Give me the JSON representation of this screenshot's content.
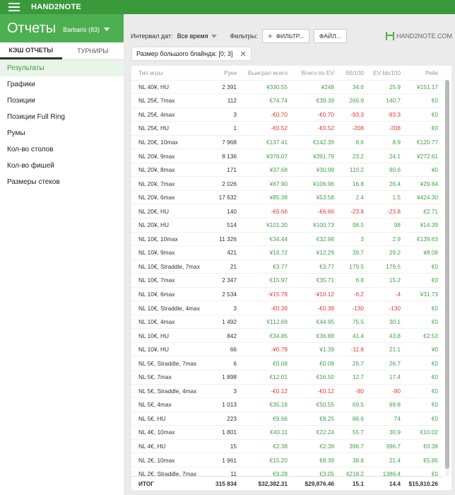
{
  "topbar": {
    "app_name": "HAND2NOTE"
  },
  "header": {
    "title": "Отчеты",
    "account": "Barbaris (83)"
  },
  "sidebar": {
    "tabs": [
      {
        "label": "КЭШ ОТЧЕТЫ"
      },
      {
        "label": "ТУРНИРЫ"
      }
    ],
    "items": [
      {
        "label": "Результаты"
      },
      {
        "label": "Графики"
      },
      {
        "label": "Позиции"
      },
      {
        "label": "Позиции Full Ring"
      },
      {
        "label": "Румы"
      },
      {
        "label": "Кол-во столов"
      },
      {
        "label": "Кол-во фишей"
      },
      {
        "label": "Размеры стеков"
      }
    ]
  },
  "filterbar": {
    "date_label": "Интервал дат:",
    "date_value": "Все время",
    "filters_label": "Фильтры:",
    "filter_button": "ФИЛЬТР...",
    "file_button": "ФАЙЛ...",
    "logo_text": "HAND2NOTE.COM"
  },
  "chip": {
    "label": "Размер большого блайнда: [0; 3]"
  },
  "table": {
    "columns": [
      "Тип игры",
      "Руки",
      "Выиграл всего",
      "Всего по EV",
      "бб/100",
      "EV bb/100",
      "Рейк"
    ],
    "rows": [
      [
        "NL 40¥, HU",
        "2 391",
        "¥330.55",
        "¥248",
        "34.6",
        "25.9",
        "¥151.17"
      ],
      [
        "NL 25€, 7max",
        "112",
        "€74.74",
        "€39.39",
        "266.9",
        "140.7",
        "€0"
      ],
      [
        "NL 25€, 4max",
        "3",
        "-€0.70",
        "-€0.70",
        "-93.3",
        "-93.3",
        "€0"
      ],
      [
        "NL 25€, HU",
        "1",
        "-€0.52",
        "-€0.52",
        "-208",
        "-208",
        "€0"
      ],
      [
        "NL 20€, 10max",
        "7 968",
        "€137.41",
        "€142.39",
        "8.6",
        "8.9",
        "€120.77"
      ],
      [
        "NL 20¥, 9max",
        "8 136",
        "¥378.07",
        "¥391.79",
        "23.2",
        "24.1",
        "¥272.61"
      ],
      [
        "NL 20¥, 8max",
        "171",
        "¥37.68",
        "¥30.99",
        "110.2",
        "90.6",
        "¥0"
      ],
      [
        "NL 20¥, 7max",
        "2 026",
        "¥67.90",
        "¥106.96",
        "16.8",
        "26.4",
        "¥29.84"
      ],
      [
        "NL 20¥, 6max",
        "17 632",
        "¥85.38",
        "¥53.58",
        "2.4",
        "1.5",
        "¥424.30"
      ],
      [
        "NL 20€, HU",
        "140",
        "-€6.66",
        "-€6.66",
        "-23.8",
        "-23.8",
        "€2.71"
      ],
      [
        "NL 20¥, HU",
        "514",
        "¥101.30",
        "¥100.73",
        "98.5",
        "98",
        "¥14.39"
      ],
      [
        "NL 10€, 10max",
        "11 326",
        "€34.44",
        "€32.98",
        "3",
        "2.9",
        "€139.63"
      ],
      [
        "NL 10¥, 9max",
        "421",
        "¥16.72",
        "¥12.29",
        "39.7",
        "29.2",
        "¥8.08"
      ],
      [
        "NL 10€, Straddle, 7max",
        "21",
        "€3.77",
        "€3.77",
        "179.5",
        "179.5",
        "€0"
      ],
      [
        "NL 10€, 7max",
        "2 347",
        "€15.97",
        "€35.71",
        "6.8",
        "15.2",
        "€0"
      ],
      [
        "NL 10¥, 6max",
        "2 534",
        "-¥15.78",
        "-¥10.12",
        "-6.2",
        "-4",
        "¥31.73"
      ],
      [
        "NL 10€, Straddle, 4max",
        "3",
        "-€0.39",
        "-€0.39",
        "-130",
        "-130",
        "€0"
      ],
      [
        "NL 10€, 4max",
        "1 492",
        "€112.69",
        "€44.95",
        "75.5",
        "30.1",
        "€0"
      ],
      [
        "NL 10€, HU",
        "842",
        "€34.85",
        "€36.88",
        "41.4",
        "43.8",
        "€2.53"
      ],
      [
        "NL 10¥, HU",
        "66",
        "-¥0.78",
        "¥1.39",
        "-11.8",
        "21.1",
        "¥0"
      ],
      [
        "NL 5€, Straddle, 7max",
        "6",
        "€0.08",
        "€0.08",
        "26.7",
        "26.7",
        "€0"
      ],
      [
        "NL 5€, 7max",
        "1 898",
        "€12.01",
        "€16.50",
        "12.7",
        "17.4",
        "€0"
      ],
      [
        "NL 5€, Straddle, 4max",
        "3",
        "-€0.12",
        "-€0.12",
        "-80",
        "-80",
        "€0"
      ],
      [
        "NL 5€, 4max",
        "1 013",
        "€35.18",
        "€50.55",
        "69.5",
        "99.8",
        "€0"
      ],
      [
        "NL 5€, HU",
        "223",
        "€9.66",
        "€8.25",
        "86.6",
        "74",
        "€0"
      ],
      [
        "NL 4€, 10max",
        "1 801",
        "€40.11",
        "€22.24",
        "55.7",
        "30.9",
        "€10.02"
      ],
      [
        "NL 4€, HU",
        "15",
        "€2.38",
        "€2.38",
        "396.7",
        "396.7",
        "€0.38"
      ],
      [
        "NL 2€, 10max",
        "1 961",
        "€15.20",
        "€8.39",
        "38.8",
        "21.4",
        "€5.85"
      ],
      [
        "NL 2€, Straddle, 7max",
        "11",
        "€9.28",
        "€3.05",
        "4218.2",
        "1386.4",
        "€0"
      ]
    ],
    "totals": [
      "ИТОГ",
      "315 834",
      "$32,382.31",
      "$29,876.46",
      "15.1",
      "14.4",
      "$15,810.26"
    ]
  },
  "colors": {
    "accent": "#4caf50",
    "topbar": "#3a9a3b",
    "positive": "#43a047",
    "negative": "#e53935"
  }
}
